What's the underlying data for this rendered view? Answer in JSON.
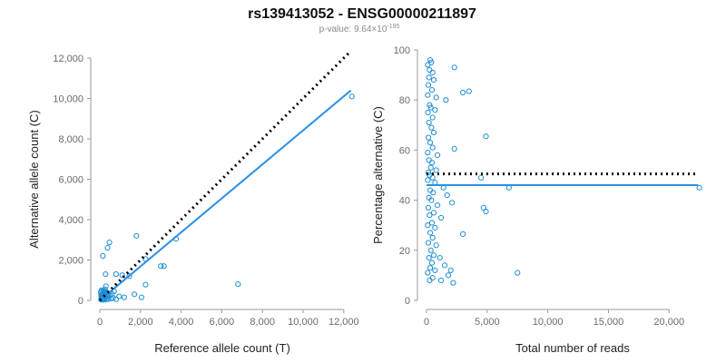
{
  "figure": {
    "title": "rs139413052 - ENSG00000211897",
    "subtitle_prefix": "p-value: 9.64×10",
    "subtitle_exponent": "-195"
  },
  "colors": {
    "points": "#1f8fd6",
    "fit_line": "#2a8fe6",
    "reference_line": "#000000",
    "axis": "#9a9a9a",
    "tick_text": "#6a6a6a"
  },
  "chart_data": [
    {
      "type": "scatter",
      "id": "left",
      "xlabel": "Reference allele count (T)",
      "ylabel": "Alternative allele count (C)",
      "xlim": [
        0,
        12500
      ],
      "ylim": [
        0,
        12000
      ],
      "x_ticks": [
        0,
        2000,
        4000,
        6000,
        8000,
        10000,
        12000
      ],
      "x_tick_labels": [
        "0",
        "2,000",
        "4,000",
        "6,000",
        "8,000",
        "10,000",
        "12,000"
      ],
      "y_ticks": [
        0,
        2000,
        4000,
        6000,
        8000,
        10000,
        12000
      ],
      "y_tick_labels": [
        "0",
        "2,000",
        "4,000",
        "6,000",
        "8,000",
        "10,000",
        "12,000"
      ],
      "grid": false,
      "reference_line": {
        "style": "dotted",
        "x": [
          0,
          12350
        ],
        "y": [
          0,
          12350
        ]
      },
      "fit_line": {
        "style": "solid",
        "x": [
          0,
          12350
        ],
        "y": [
          0,
          10400
        ]
      },
      "points": [
        [
          150,
          2200
        ],
        [
          380,
          2600
        ],
        [
          470,
          2870
        ],
        [
          1800,
          3200
        ],
        [
          3750,
          3050
        ],
        [
          2250,
          2050
        ],
        [
          1450,
          1200
        ],
        [
          3000,
          1700
        ],
        [
          3150,
          1700
        ],
        [
          1100,
          1250
        ],
        [
          800,
          1300
        ],
        [
          280,
          1300
        ],
        [
          6800,
          800
        ],
        [
          12400,
          10100
        ],
        [
          2250,
          780
        ],
        [
          1700,
          300
        ],
        [
          2050,
          150
        ],
        [
          1200,
          150
        ],
        [
          950,
          200
        ],
        [
          700,
          450
        ],
        [
          600,
          320
        ],
        [
          400,
          180
        ],
        [
          500,
          250
        ],
        [
          300,
          700
        ],
        [
          250,
          550
        ],
        [
          200,
          450
        ],
        [
          350,
          400
        ],
        [
          150,
          350
        ],
        [
          100,
          300
        ],
        [
          120,
          260
        ],
        [
          180,
          220
        ],
        [
          90,
          180
        ],
        [
          130,
          150
        ],
        [
          160,
          120
        ],
        [
          200,
          100
        ],
        [
          250,
          90
        ],
        [
          100,
          60
        ],
        [
          150,
          50
        ],
        [
          300,
          40
        ],
        [
          400,
          60
        ],
        [
          550,
          80
        ],
        [
          650,
          120
        ],
        [
          800,
          60
        ],
        [
          50,
          400
        ],
        [
          80,
          500
        ],
        [
          60,
          250
        ],
        [
          220,
          150
        ],
        [
          280,
          200
        ],
        [
          120,
          80
        ],
        [
          180,
          30
        ],
        [
          70,
          120
        ],
        [
          240,
          300
        ],
        [
          330,
          260
        ],
        [
          420,
          310
        ],
        [
          110,
          450
        ],
        [
          190,
          380
        ],
        [
          140,
          200
        ],
        [
          90,
          90
        ],
        [
          60,
          30
        ],
        [
          260,
          420
        ]
      ]
    },
    {
      "type": "scatter",
      "id": "right",
      "xlabel": "Total number of reads",
      "ylabel": "Percentage alternative (C)",
      "xlim": [
        0,
        22600
      ],
      "ylim": [
        0,
        100
      ],
      "x_ticks": [
        0,
        5000,
        10000,
        15000,
        20000
      ],
      "x_tick_labels": [
        "0",
        "5,000",
        "10,000",
        "15,000",
        "20,000"
      ],
      "y_ticks": [
        0,
        20,
        40,
        60,
        80,
        100
      ],
      "y_tick_labels": [
        "0",
        "20",
        "40",
        "60",
        "80",
        "100"
      ],
      "grid": false,
      "reference_line": {
        "style": "dotted",
        "x": [
          0,
          22400
        ],
        "y": [
          50.5,
          50.5
        ]
      },
      "fit_line": {
        "style": "solid",
        "x": [
          0,
          22400
        ],
        "y": [
          46,
          46
        ]
      },
      "points": [
        [
          100,
          94
        ],
        [
          300,
          96
        ],
        [
          400,
          95
        ],
        [
          250,
          92
        ],
        [
          500,
          91
        ],
        [
          2300,
          93
        ],
        [
          200,
          89
        ],
        [
          600,
          88
        ],
        [
          150,
          86
        ],
        [
          450,
          84
        ],
        [
          3000,
          83
        ],
        [
          3500,
          83.5
        ],
        [
          100,
          82
        ],
        [
          800,
          81
        ],
        [
          1600,
          80
        ],
        [
          250,
          78
        ],
        [
          350,
          77
        ],
        [
          700,
          76
        ],
        [
          120,
          75
        ],
        [
          500,
          73
        ],
        [
          200,
          71
        ],
        [
          400,
          69
        ],
        [
          600,
          67
        ],
        [
          150,
          65
        ],
        [
          4900,
          65.5
        ],
        [
          300,
          63
        ],
        [
          500,
          61
        ],
        [
          2300,
          60.5
        ],
        [
          100,
          59
        ],
        [
          900,
          58
        ],
        [
          200,
          56
        ],
        [
          450,
          55
        ],
        [
          350,
          53
        ],
        [
          800,
          52
        ],
        [
          150,
          51
        ],
        [
          250,
          50
        ],
        [
          500,
          49
        ],
        [
          4500,
          49
        ],
        [
          100,
          48
        ],
        [
          700,
          47
        ],
        [
          22500,
          45
        ],
        [
          6800,
          45
        ],
        [
          1400,
          45
        ],
        [
          300,
          44
        ],
        [
          550,
          43
        ],
        [
          1700,
          42
        ],
        [
          200,
          41
        ],
        [
          400,
          40
        ],
        [
          2100,
          39
        ],
        [
          900,
          38
        ],
        [
          150,
          37
        ],
        [
          4700,
          37
        ],
        [
          4900,
          35.5
        ],
        [
          600,
          35
        ],
        [
          250,
          34
        ],
        [
          1200,
          33
        ],
        [
          450,
          31
        ],
        [
          100,
          30
        ],
        [
          700,
          29
        ],
        [
          3000,
          26.5
        ],
        [
          300,
          27
        ],
        [
          500,
          25
        ],
        [
          150,
          23
        ],
        [
          800,
          22
        ],
        [
          350,
          20
        ],
        [
          600,
          18
        ],
        [
          200,
          17
        ],
        [
          1100,
          17
        ],
        [
          450,
          15
        ],
        [
          1500,
          14
        ],
        [
          300,
          13
        ],
        [
          700,
          12
        ],
        [
          100,
          11
        ],
        [
          2000,
          12
        ],
        [
          1800,
          10
        ],
        [
          7500,
          11
        ],
        [
          500,
          9
        ],
        [
          1200,
          8
        ],
        [
          250,
          8
        ],
        [
          2200,
          7
        ]
      ]
    }
  ]
}
